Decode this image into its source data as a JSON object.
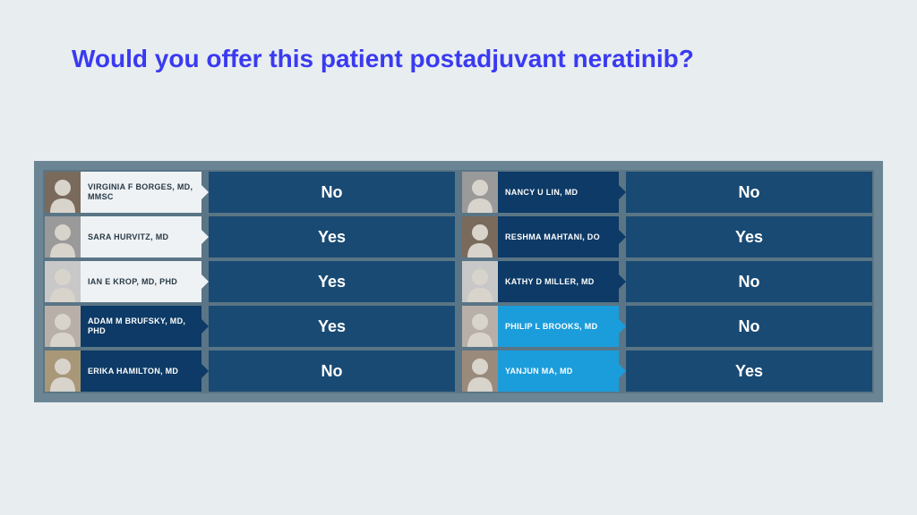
{
  "title": {
    "text": "Would you offer this patient postadjuvant neratinib?",
    "color": "#3a3af0"
  },
  "panel": {
    "outer_bg": "#6b8594",
    "inner_bg": "#5a7585"
  },
  "name_tag_variants": {
    "white": {
      "bg": "#eef2f5",
      "fg": "#2a3a46"
    },
    "dark": {
      "bg": "#0d3a66",
      "fg": "#ffffff"
    },
    "bright": {
      "bg": "#1b9ddb",
      "fg": "#ffffff"
    }
  },
  "answer_bg": "#194a73",
  "answer_fg": "#ffffff",
  "left": [
    {
      "name": "VIRGINIA F BORGES, MD, MMSC",
      "answer": "No",
      "variant": "white",
      "avatar_bg": "#7a6a5c"
    },
    {
      "name": "SARA HURVITZ, MD",
      "answer": "Yes",
      "variant": "white",
      "avatar_bg": "#9a9a9a"
    },
    {
      "name": "IAN E KROP, MD, PHD",
      "answer": "Yes",
      "variant": "white",
      "avatar_bg": "#c8c8c8"
    },
    {
      "name": "ADAM M BRUFSKY, MD, PHD",
      "answer": "Yes",
      "variant": "dark",
      "avatar_bg": "#b8b0a8"
    },
    {
      "name": "ERIKA HAMILTON, MD",
      "answer": "No",
      "variant": "dark",
      "avatar_bg": "#a89878"
    }
  ],
  "right": [
    {
      "name": "NANCY U LIN, MD",
      "answer": "No",
      "variant": "dark",
      "avatar_bg": "#9a9a9a"
    },
    {
      "name": "RESHMA MAHTANI, DO",
      "answer": "Yes",
      "variant": "dark",
      "avatar_bg": "#7a6a5c"
    },
    {
      "name": "KATHY D MILLER, MD",
      "answer": "No",
      "variant": "dark",
      "avatar_bg": "#c8c8c8"
    },
    {
      "name": "PHILIP L BROOKS, MD",
      "answer": "No",
      "variant": "bright",
      "avatar_bg": "#b8b0a8"
    },
    {
      "name": "YANJUN MA, MD",
      "answer": "Yes",
      "variant": "bright",
      "avatar_bg": "#9a8a7c"
    }
  ]
}
